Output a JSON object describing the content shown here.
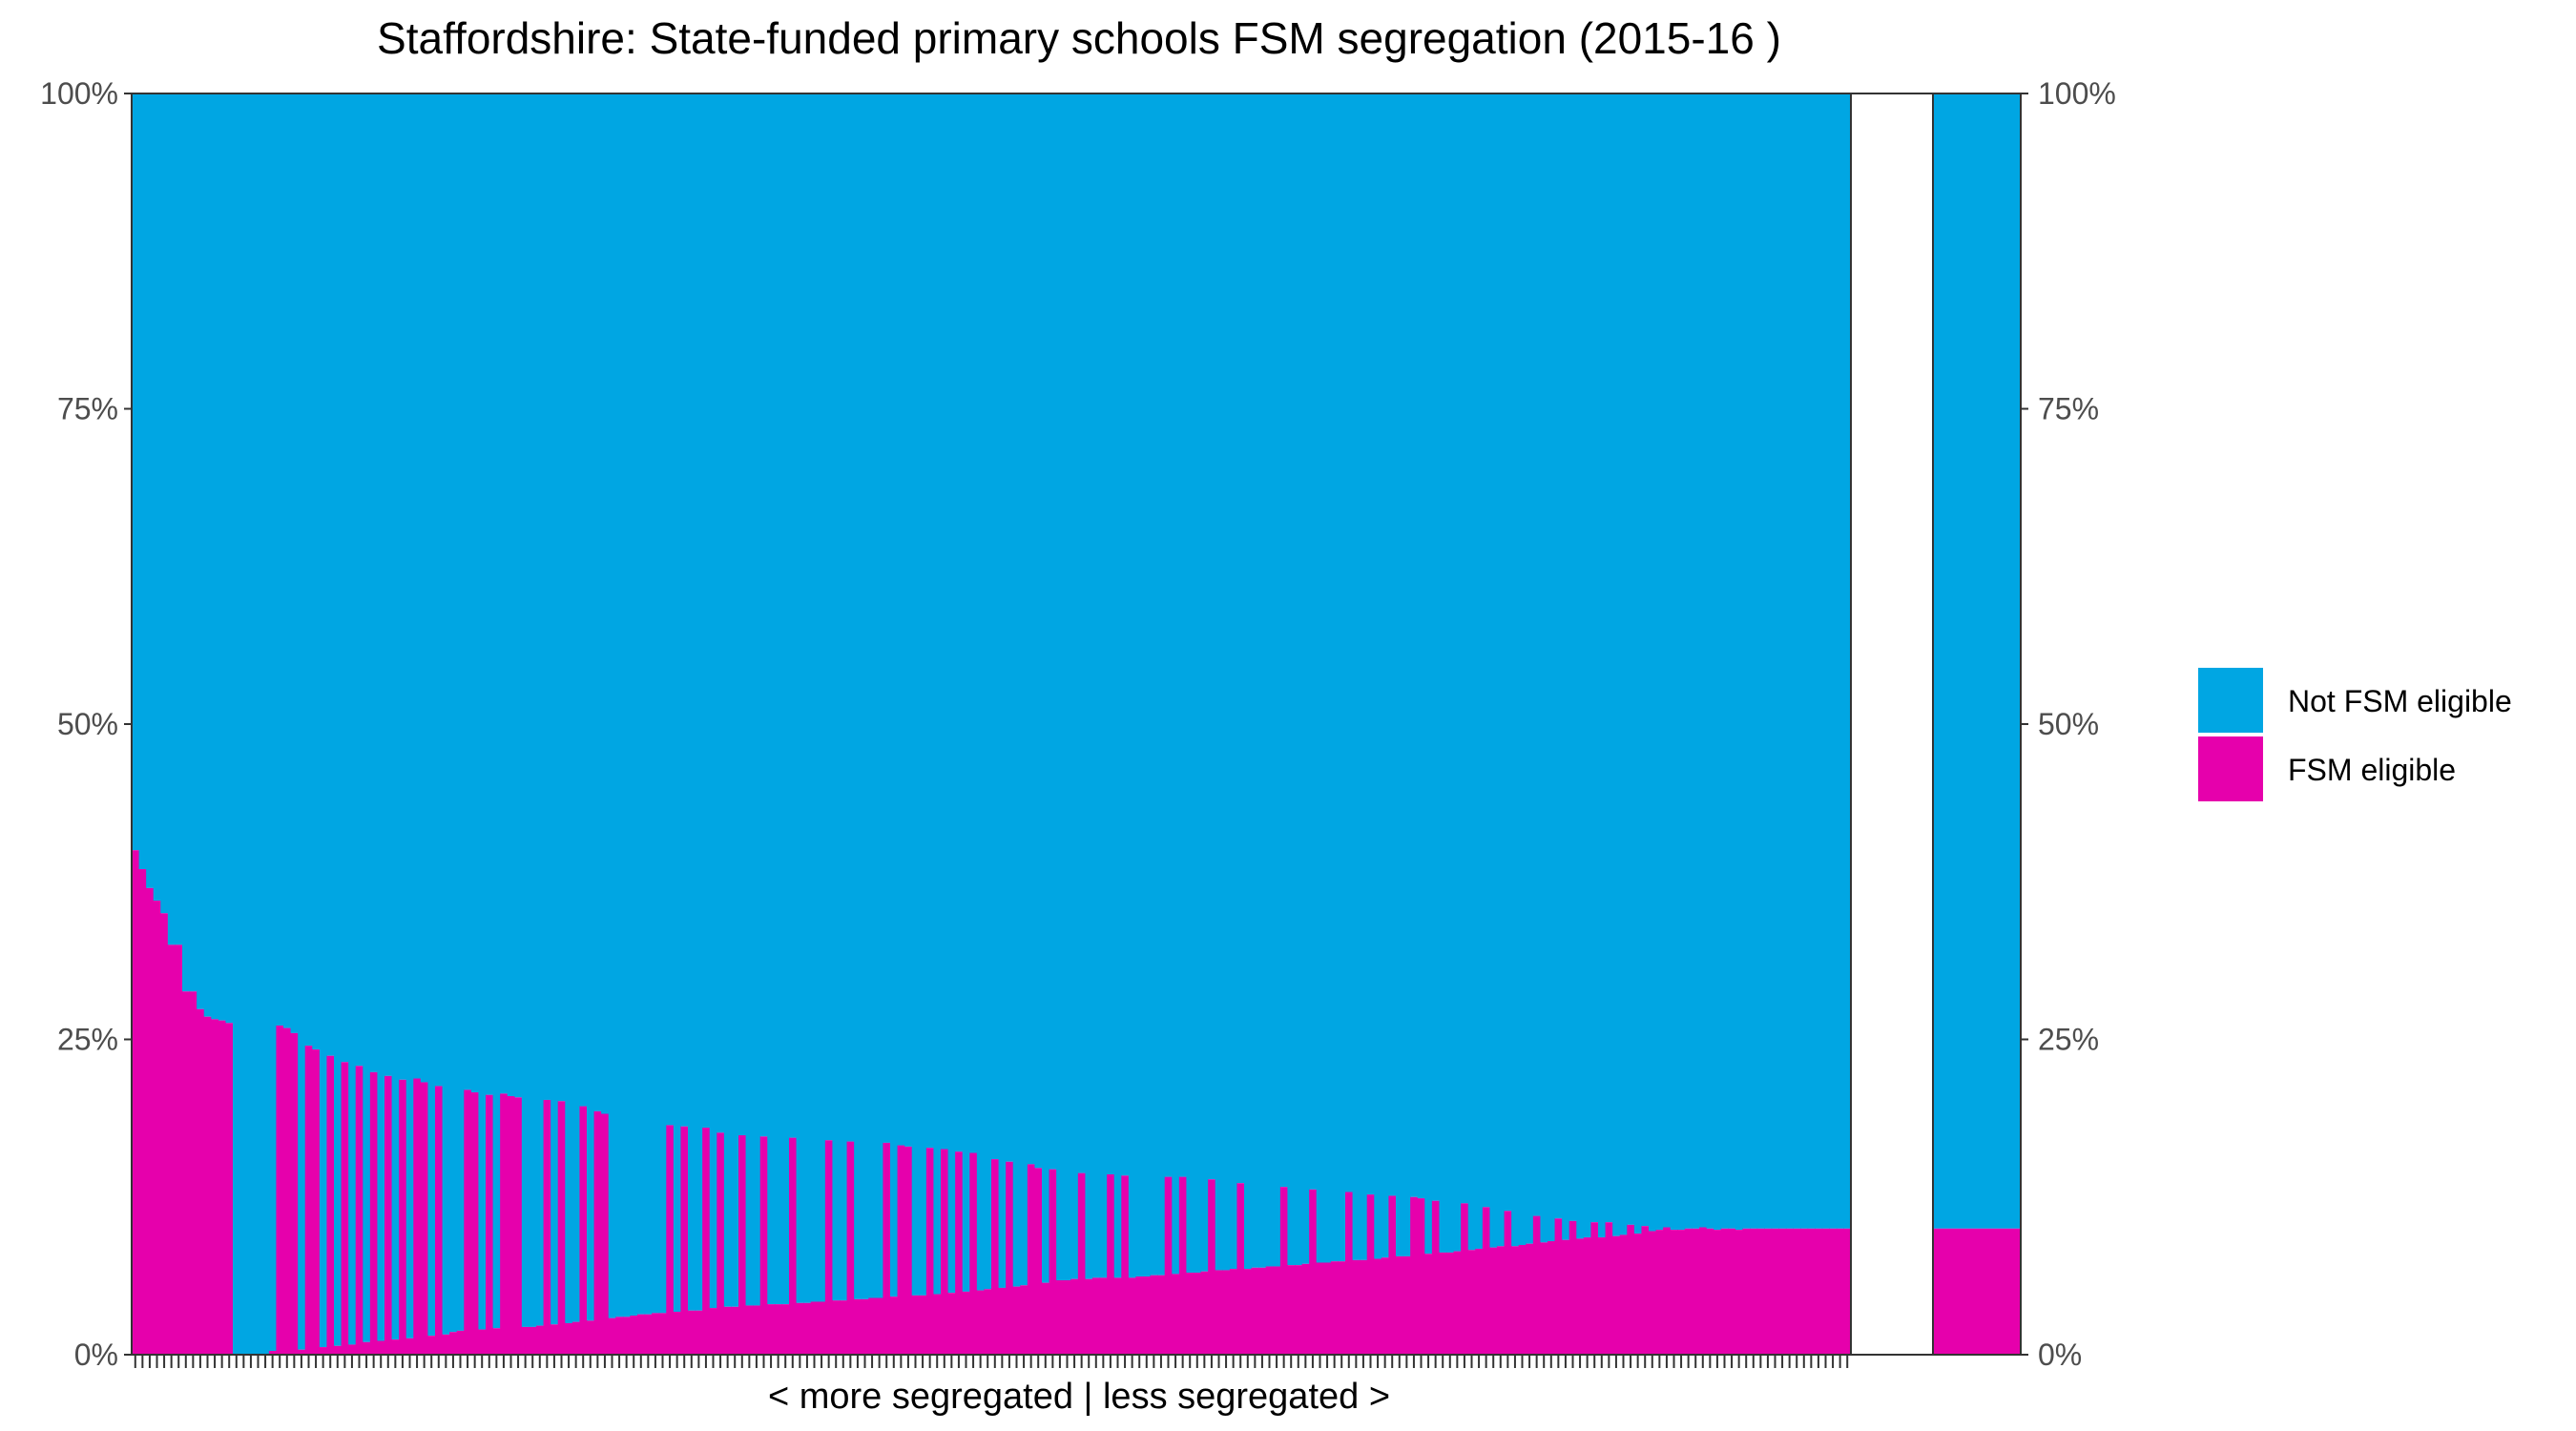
{
  "chart_data": {
    "type": "bar",
    "title": "Staffordshire: State-funded primary schools FSM segregation (2015-16 )",
    "xlabel": "< more segregated | less segregated >",
    "ylabel": "",
    "ylim": [
      0,
      100
    ],
    "y_ticks": [
      "0%",
      "25%",
      "50%",
      "75%",
      "100%"
    ],
    "stacked_percent": true,
    "colors": {
      "fsm": "#E600AC",
      "not_fsm": "#00A6E3",
      "panel_border": "#333333"
    },
    "legend": {
      "position": "right",
      "entries": [
        {
          "label": "Not FSM eligible",
          "color": "#00A6E3"
        },
        {
          "label": "FSM eligible",
          "color": "#E600AC"
        }
      ]
    },
    "series": [
      {
        "name": "FSM eligible",
        "values": [
          40,
          38.5,
          37,
          36,
          35,
          32.5,
          32.5,
          28.8,
          28.8,
          27.4,
          26.8,
          26.6,
          26.5,
          26.3,
          0,
          0,
          0,
          0,
          0,
          0.3,
          26.1,
          25.9,
          25.5,
          0.4,
          24.5,
          24.2,
          0.6,
          23.7,
          0.7,
          23.2,
          0.8,
          22.9,
          1,
          22.4,
          1.1,
          22.1,
          1.2,
          21.8,
          1.3,
          21.9,
          21.6,
          1.5,
          21.3,
          1.6,
          1.8,
          1.9,
          21,
          20.8,
          2,
          20.6,
          2.1,
          20.7,
          20.5,
          20.4,
          2.2,
          2.2,
          2.3,
          20.2,
          2.4,
          20.1,
          2.5,
          2.6,
          19.7,
          2.7,
          19.3,
          19.1,
          2.9,
          3,
          3,
          3.1,
          3.2,
          3.2,
          3.3,
          3.3,
          18.2,
          3.4,
          18.1,
          3.5,
          3.5,
          18,
          3.7,
          17.6,
          3.8,
          3.8,
          17.4,
          3.9,
          3.9,
          17.3,
          4,
          4,
          4,
          17.2,
          4.1,
          4.1,
          4.2,
          4.2,
          17,
          4.3,
          4.3,
          16.9,
          4.4,
          4.4,
          4.5,
          4.5,
          16.8,
          4.6,
          16.6,
          16.5,
          4.7,
          4.7,
          16.4,
          4.8,
          16.3,
          4.9,
          16.1,
          5,
          16,
          5.1,
          5.2,
          15.5,
          5.3,
          15.3,
          5.4,
          5.5,
          15.1,
          14.8,
          5.7,
          14.7,
          5.9,
          5.9,
          6,
          14.4,
          6,
          6.1,
          6.1,
          14.3,
          6.1,
          14.2,
          6.1,
          6.2,
          6.2,
          6.3,
          6.3,
          14.1,
          6.4,
          14.1,
          6.5,
          6.5,
          6.6,
          13.9,
          6.7,
          6.7,
          6.8,
          13.6,
          6.8,
          6.9,
          6.9,
          7,
          7,
          13.3,
          7.1,
          7.1,
          7.2,
          13.1,
          7.3,
          7.3,
          7.4,
          7.4,
          12.9,
          7.5,
          7.5,
          12.7,
          7.6,
          7.7,
          12.6,
          7.8,
          7.8,
          12.5,
          12.4,
          8,
          12.2,
          8.1,
          8.1,
          8.2,
          12,
          8.3,
          8.4,
          11.7,
          8.5,
          8.6,
          11.4,
          8.6,
          8.7,
          8.8,
          11,
          8.9,
          9,
          10.8,
          9.1,
          10.6,
          9.2,
          9.3,
          10.5,
          9.3,
          10.5,
          9.4,
          9.5,
          10.3,
          9.6,
          10.2,
          9.8,
          9.9,
          10.1,
          9.9,
          9.9,
          10,
          10,
          10.1,
          10,
          9.9,
          10,
          10,
          9.9,
          10,
          10,
          10,
          10,
          10,
          10,
          10,
          10,
          10,
          10,
          10,
          10,
          10,
          10,
          10
        ]
      },
      {
        "name": "Not FSM eligible",
        "values": "complement to 100%"
      }
    ],
    "summary_bar": {
      "fsm": 10,
      "not_fsm": 90
    }
  }
}
